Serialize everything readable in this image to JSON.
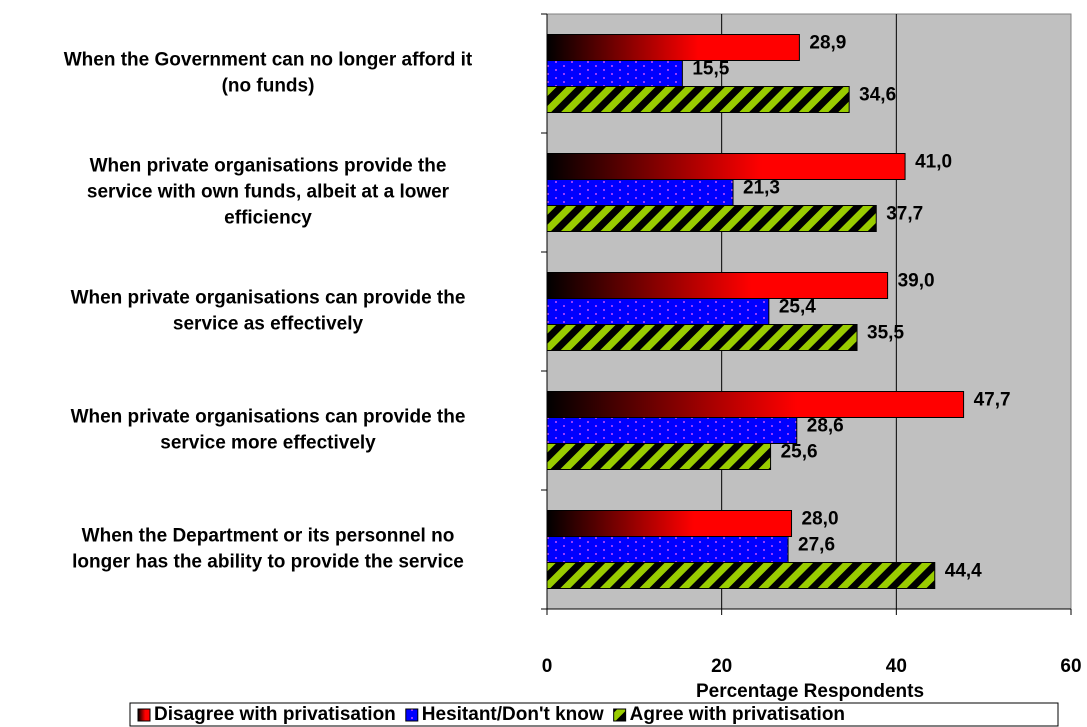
{
  "chart_data": {
    "type": "barh",
    "categories": [
      [
        "When the Government can no longer afford it",
        "(no funds)"
      ],
      [
        "When private organisations provide the",
        "service with own funds, albeit at a lower",
        "efficiency"
      ],
      [
        "When private organisations can provide the",
        "service as effectively"
      ],
      [
        "When private organisations can provide the",
        "service more effectively"
      ],
      [
        "When the Department or its personnel no",
        "longer has  the ability to provide the service"
      ]
    ],
    "series": [
      {
        "name": "Disagree with privatisation",
        "color": "#ff0000",
        "values": [
          28.9,
          41.0,
          39.0,
          47.7,
          28.0
        ],
        "value_labels": [
          "28,9",
          "41,0",
          "39,0",
          "47,7",
          "28,0"
        ]
      },
      {
        "name": "Hesitant/Don't know",
        "color": "#0000ff",
        "values": [
          15.5,
          21.3,
          25.4,
          28.6,
          27.6
        ],
        "value_labels": [
          "15,5",
          "21,3",
          "25,4",
          "28,6",
          "27,6"
        ]
      },
      {
        "name": "Agree with privatisation",
        "color": "#99cc00",
        "values": [
          34.6,
          37.7,
          35.5,
          25.6,
          44.4
        ],
        "value_labels": [
          "34,6",
          "37,7",
          "35,5",
          "25,6",
          "44,4"
        ]
      }
    ],
    "xlabel": "Percentage Respondents",
    "xlim": [
      0,
      60
    ],
    "xticks": [
      0,
      20,
      40,
      60
    ],
    "grid": true,
    "legend": "bottom"
  }
}
